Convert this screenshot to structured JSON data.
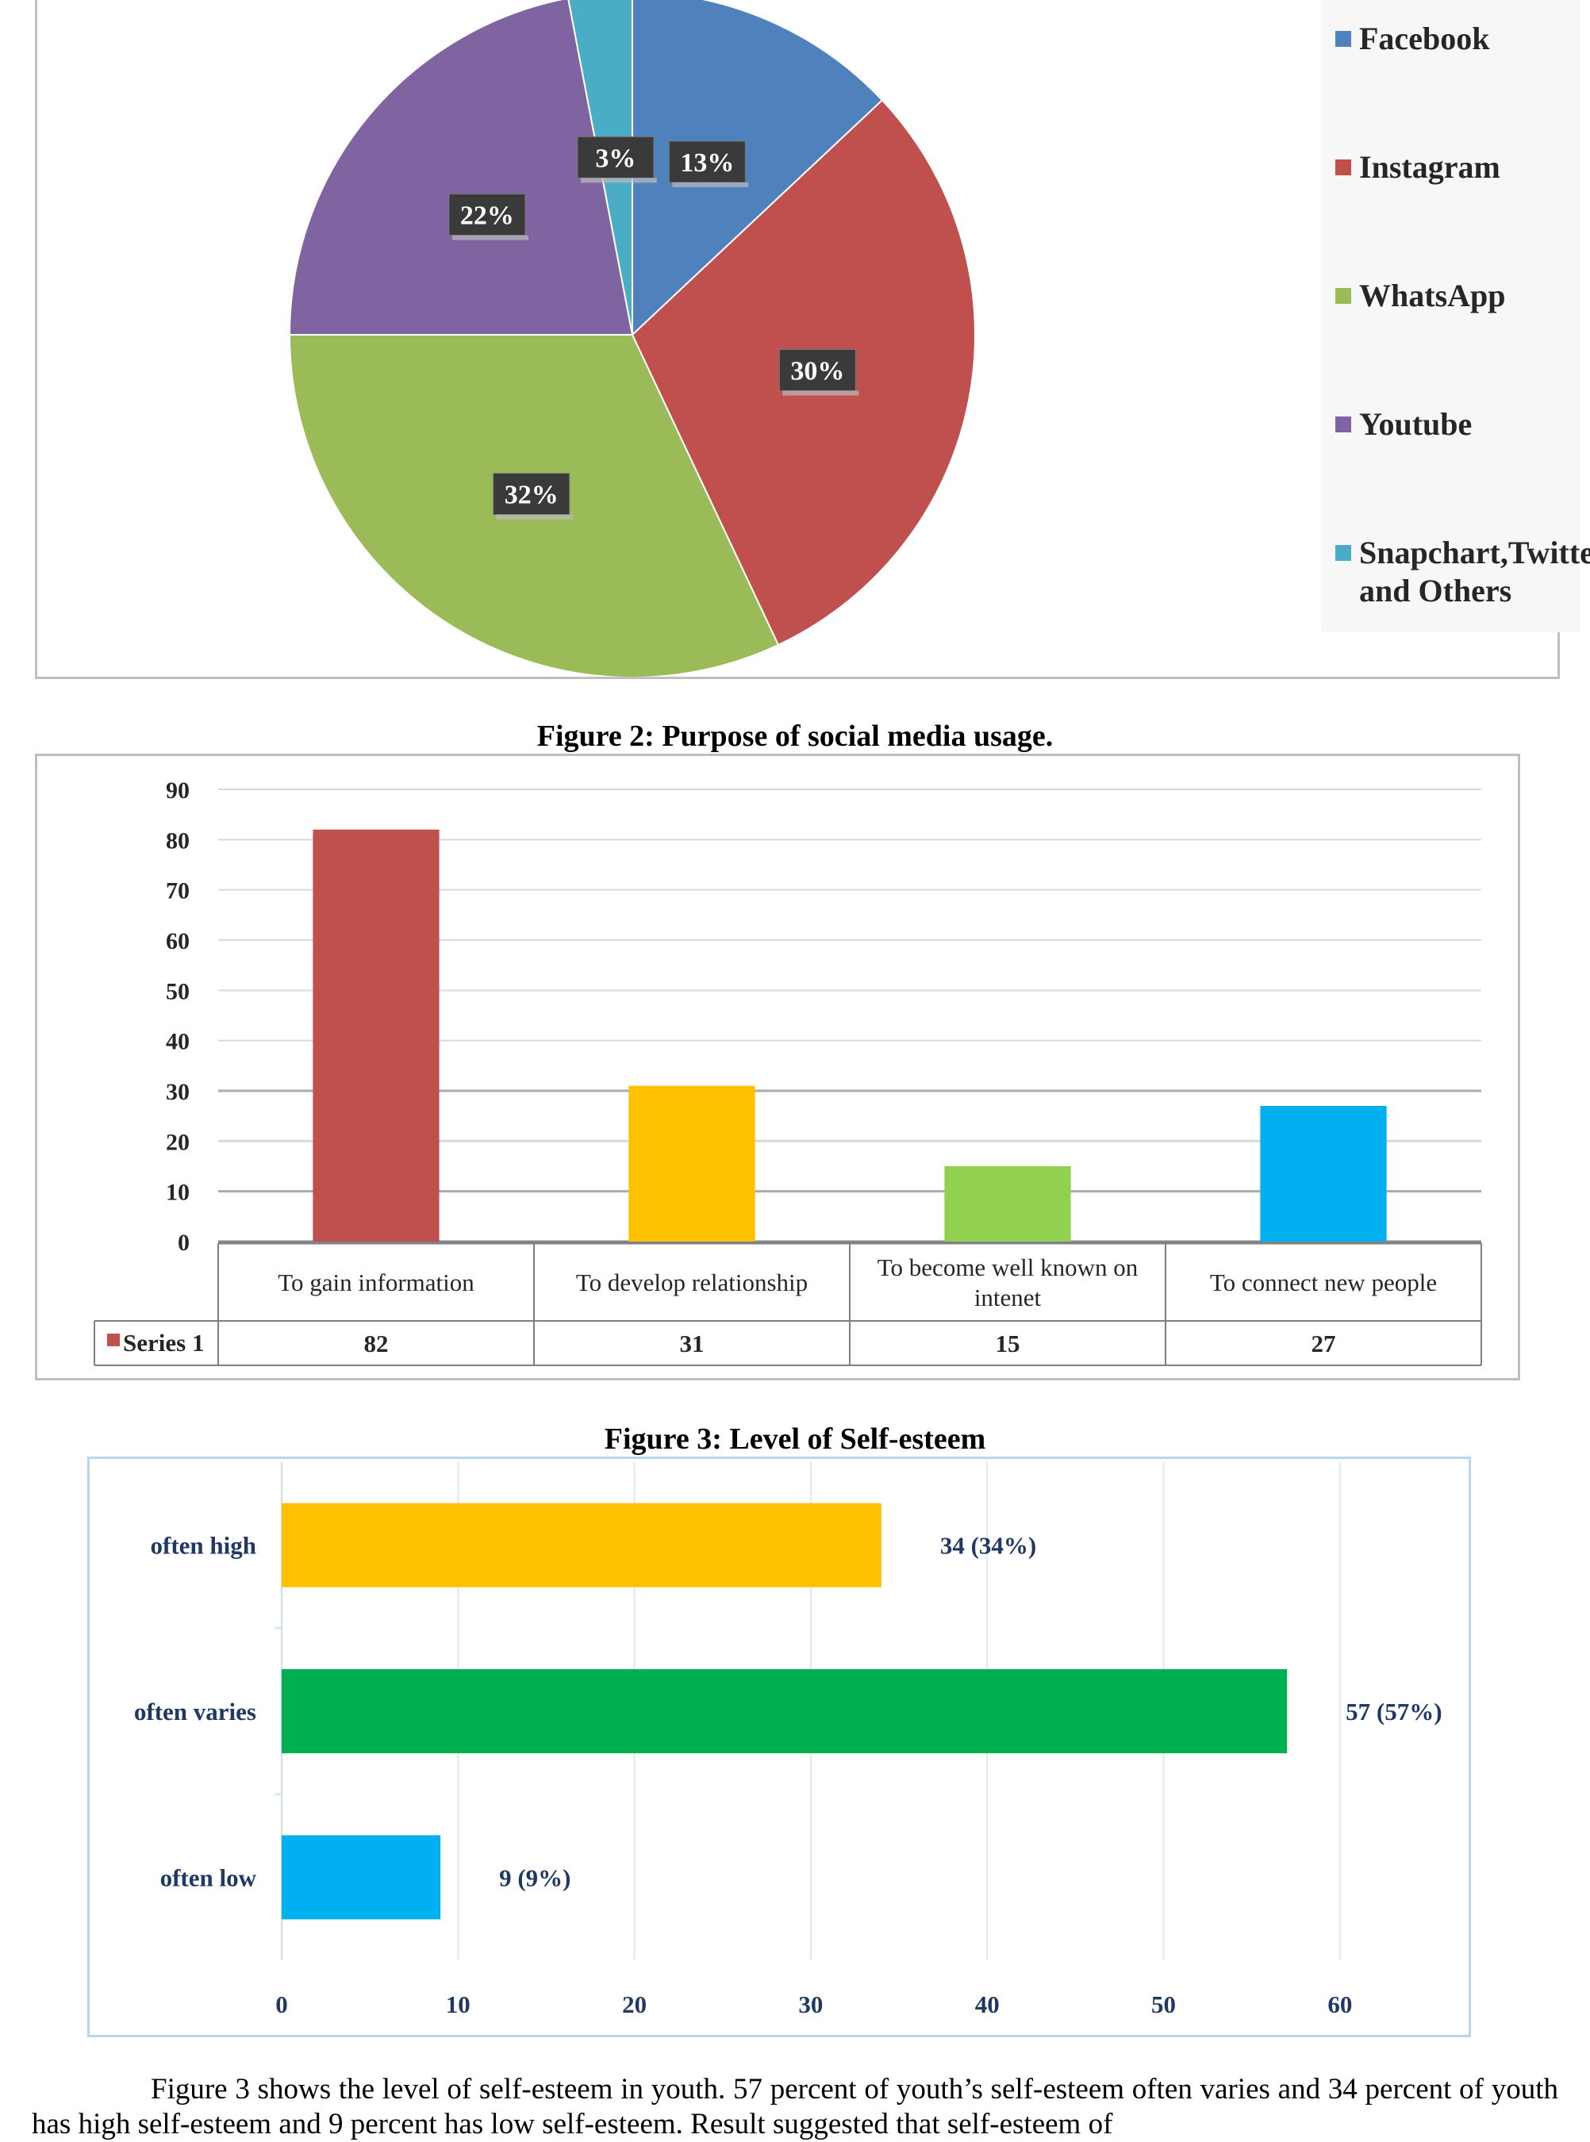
{
  "figure2_title": "Figure 2: Purpose of social media usage.",
  "figure3_title": "Figure 3: Level of Self-esteem",
  "paragraph": "Figure 3 shows the level of self-esteem in youth. 57 percent of youth’s self-esteem often varies and 34 percent of youth has high self-esteem and 9 percent has low self-esteem. Result suggested that self-esteem of",
  "chart_data": [
    {
      "type": "pie",
      "title": "",
      "slices": [
        {
          "label": "Facebook",
          "value": 13,
          "display": "13%",
          "color": "#4f81bd"
        },
        {
          "label": "Instagram",
          "value": 30,
          "display": "30%",
          "color": "#c0504d"
        },
        {
          "label": "WhatsApp",
          "value": 32,
          "display": "32%",
          "color": "#9bbb59"
        },
        {
          "label": "Youtube",
          "value": 22,
          "display": "22%",
          "color": "#8064a2"
        },
        {
          "label": "Snapchart,Twitter and Others",
          "value": 3,
          "display": "3%",
          "color": "#4bacc6"
        }
      ],
      "legend": {
        "position": "right",
        "entries": [
          "Facebook",
          "Instagram",
          "WhatsApp",
          "Youtube",
          "Snapchart,Twitter and Others"
        ]
      }
    },
    {
      "type": "bar",
      "title": "Figure 2: Purpose of social media usage.",
      "categories": [
        "To gain information",
        "To develop relationship",
        "To become well known on intenet",
        "To connect new people"
      ],
      "series": [
        {
          "name": "Series 1",
          "values": [
            82,
            31,
            15,
            27
          ]
        }
      ],
      "colors": [
        "#c0504d",
        "#ffc000",
        "#92d050",
        "#00b0f0"
      ],
      "legend_swatch_color": "#c0504d",
      "ylim": [
        0,
        90
      ],
      "yticks": [
        0,
        10,
        20,
        30,
        40,
        50,
        60,
        70,
        80,
        90
      ],
      "grid": true,
      "data_table": true
    },
    {
      "type": "bar",
      "orientation": "horizontal",
      "title": "Figure 3: Level of Self-esteem",
      "categories": [
        "often high",
        "often varies",
        "often low"
      ],
      "values": [
        34,
        57,
        9
      ],
      "labels": [
        "34 (34%)",
        "57 (57%)",
        "9 (9%)"
      ],
      "colors": [
        "#ffc000",
        "#00b050",
        "#00b0f0"
      ],
      "xlim": [
        0,
        65
      ],
      "xticks": [
        0,
        10,
        20,
        30,
        40,
        50,
        60
      ],
      "grid": true,
      "label_color": "#1f3864"
    }
  ]
}
